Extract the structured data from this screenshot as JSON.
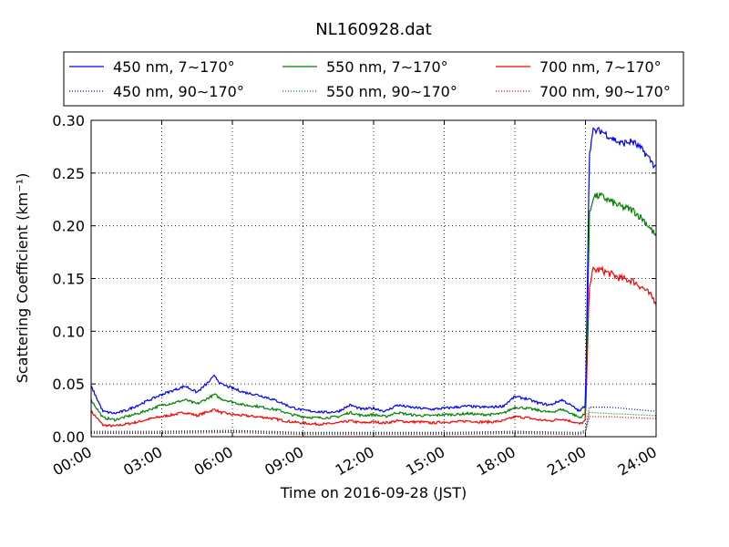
{
  "chart_data": {
    "type": "line",
    "title": "NL160928.dat",
    "xlabel": "Time on 2016-09-28 (JST)",
    "ylabel": "Scattering Coefficient (km⁻¹)",
    "xlim": [
      "00:00",
      "24:00"
    ],
    "ylim": [
      0,
      0.3
    ],
    "x_ticks": [
      "00:00",
      "03:00",
      "06:00",
      "09:00",
      "12:00",
      "15:00",
      "18:00",
      "21:00",
      "24:00"
    ],
    "y_ticks": [
      "0.00",
      "0.05",
      "0.10",
      "0.15",
      "0.20",
      "0.25",
      "0.30"
    ],
    "grid": true,
    "legend_position": "top",
    "series": [
      {
        "name": "450 nm, 7∼170°",
        "color": "#0000ff",
        "style": "solid",
        "x": [
          "00:00",
          "00:30",
          "01:00",
          "01:30",
          "02:00",
          "02:30",
          "03:00",
          "03:30",
          "04:00",
          "04:30",
          "05:00",
          "05:15",
          "05:30",
          "06:00",
          "06:30",
          "07:00",
          "07:30",
          "08:00",
          "08:30",
          "09:00",
          "09:30",
          "10:00",
          "10:30",
          "11:00",
          "11:30",
          "12:00",
          "12:30",
          "13:00",
          "13:30",
          "14:00",
          "14:30",
          "15:00",
          "15:30",
          "16:00",
          "16:30",
          "17:00",
          "17:30",
          "18:00",
          "18:30",
          "19:00",
          "19:30",
          "20:00",
          "20:30",
          "20:45",
          "21:00",
          "21:05",
          "21:10",
          "21:20",
          "21:40",
          "22:00",
          "22:30",
          "23:00",
          "23:30",
          "24:00"
        ],
        "y": [
          0.048,
          0.024,
          0.022,
          0.025,
          0.03,
          0.035,
          0.04,
          0.044,
          0.048,
          0.042,
          0.052,
          0.058,
          0.05,
          0.046,
          0.042,
          0.04,
          0.037,
          0.033,
          0.028,
          0.025,
          0.024,
          0.023,
          0.024,
          0.03,
          0.026,
          0.027,
          0.024,
          0.03,
          0.028,
          0.027,
          0.026,
          0.027,
          0.028,
          0.029,
          0.028,
          0.028,
          0.029,
          0.038,
          0.036,
          0.032,
          0.03,
          0.035,
          0.028,
          0.024,
          0.03,
          0.15,
          0.27,
          0.29,
          0.29,
          0.285,
          0.278,
          0.28,
          0.27,
          0.255
        ]
      },
      {
        "name": "550 nm, 7∼170°",
        "color": "#008000",
        "style": "solid",
        "x": [
          "00:00",
          "00:30",
          "01:00",
          "01:30",
          "02:00",
          "02:30",
          "03:00",
          "03:30",
          "04:00",
          "04:30",
          "05:00",
          "05:15",
          "05:30",
          "06:00",
          "06:30",
          "07:00",
          "07:30",
          "08:00",
          "08:30",
          "09:00",
          "09:30",
          "10:00",
          "10:30",
          "11:00",
          "11:30",
          "12:00",
          "12:30",
          "13:00",
          "13:30",
          "14:00",
          "14:30",
          "15:00",
          "15:30",
          "16:00",
          "16:30",
          "17:00",
          "17:30",
          "18:00",
          "18:30",
          "19:00",
          "19:30",
          "20:00",
          "20:30",
          "20:45",
          "21:00",
          "21:05",
          "21:10",
          "21:20",
          "21:40",
          "22:00",
          "22:30",
          "23:00",
          "23:30",
          "24:00"
        ],
        "y": [
          0.035,
          0.018,
          0.016,
          0.019,
          0.022,
          0.026,
          0.03,
          0.032,
          0.035,
          0.031,
          0.037,
          0.04,
          0.036,
          0.033,
          0.03,
          0.029,
          0.027,
          0.025,
          0.021,
          0.019,
          0.018,
          0.018,
          0.019,
          0.023,
          0.02,
          0.021,
          0.019,
          0.023,
          0.021,
          0.02,
          0.02,
          0.021,
          0.021,
          0.022,
          0.021,
          0.021,
          0.022,
          0.028,
          0.027,
          0.025,
          0.023,
          0.026,
          0.021,
          0.018,
          0.022,
          0.11,
          0.21,
          0.228,
          0.228,
          0.224,
          0.218,
          0.215,
          0.205,
          0.19
        ]
      },
      {
        "name": "700 nm, 7∼170°",
        "color": "#ff0000",
        "style": "solid",
        "x": [
          "00:00",
          "00:30",
          "01:00",
          "01:30",
          "02:00",
          "02:30",
          "03:00",
          "03:30",
          "04:00",
          "04:30",
          "05:00",
          "05:15",
          "05:30",
          "06:00",
          "06:30",
          "07:00",
          "07:30",
          "08:00",
          "08:30",
          "09:00",
          "09:30",
          "10:00",
          "10:30",
          "11:00",
          "11:30",
          "12:00",
          "12:30",
          "13:00",
          "13:30",
          "14:00",
          "14:30",
          "15:00",
          "15:30",
          "16:00",
          "16:30",
          "17:00",
          "17:30",
          "18:00",
          "18:30",
          "19:00",
          "19:30",
          "20:00",
          "20:30",
          "20:45",
          "21:00",
          "21:05",
          "21:10",
          "21:20",
          "21:40",
          "22:00",
          "22:30",
          "23:00",
          "23:30",
          "24:00"
        ],
        "y": [
          0.024,
          0.011,
          0.01,
          0.012,
          0.014,
          0.017,
          0.019,
          0.021,
          0.023,
          0.02,
          0.024,
          0.026,
          0.023,
          0.021,
          0.02,
          0.019,
          0.018,
          0.016,
          0.014,
          0.013,
          0.012,
          0.012,
          0.013,
          0.015,
          0.013,
          0.014,
          0.013,
          0.015,
          0.014,
          0.014,
          0.013,
          0.014,
          0.014,
          0.015,
          0.014,
          0.014,
          0.015,
          0.019,
          0.018,
          0.016,
          0.015,
          0.017,
          0.014,
          0.012,
          0.015,
          0.08,
          0.145,
          0.158,
          0.158,
          0.155,
          0.15,
          0.148,
          0.14,
          0.128
        ]
      },
      {
        "name": "450 nm, 90∼170°",
        "color": "#0000ff",
        "style": "dotted",
        "x": [
          "00:00",
          "03:00",
          "06:00",
          "09:00",
          "12:00",
          "15:00",
          "18:00",
          "20:45",
          "21:00",
          "21:10",
          "22:00",
          "23:00",
          "24:00"
        ],
        "y": [
          0.005,
          0.005,
          0.006,
          0.004,
          0.004,
          0.004,
          0.005,
          0.004,
          0.006,
          0.028,
          0.028,
          0.026,
          0.024
        ]
      },
      {
        "name": "550 nm, 90∼170°",
        "color": "#008000",
        "style": "dotted",
        "x": [
          "00:00",
          "03:00",
          "06:00",
          "09:00",
          "12:00",
          "15:00",
          "18:00",
          "20:45",
          "21:00",
          "21:10",
          "22:00",
          "23:00",
          "24:00"
        ],
        "y": [
          0.004,
          0.004,
          0.005,
          0.003,
          0.003,
          0.003,
          0.004,
          0.003,
          0.005,
          0.023,
          0.022,
          0.021,
          0.02
        ]
      },
      {
        "name": "700 nm, 90∼170°",
        "color": "#ff0000",
        "style": "dotted",
        "x": [
          "00:00",
          "03:00",
          "06:00",
          "09:00",
          "12:00",
          "15:00",
          "18:00",
          "20:45",
          "21:00",
          "21:10",
          "22:00",
          "23:00",
          "24:00"
        ],
        "y": [
          0.003,
          0.003,
          0.004,
          0.002,
          0.002,
          0.002,
          0.003,
          0.002,
          0.004,
          0.019,
          0.019,
          0.018,
          0.017
        ]
      }
    ]
  }
}
